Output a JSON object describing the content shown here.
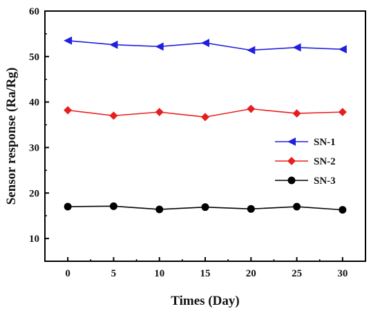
{
  "chart_data": {
    "type": "line",
    "title": "",
    "xlabel": "Times (Day)",
    "ylabel": "Sensor response (Ra/Rg)",
    "x": [
      0,
      5,
      10,
      15,
      20,
      25,
      30
    ],
    "xlim": [
      -2.5,
      32.5
    ],
    "ylim": [
      5,
      60
    ],
    "xticks": [
      "0",
      "5",
      "10",
      "15",
      "20",
      "25",
      "30"
    ],
    "yticks": [
      "10",
      "20",
      "30",
      "40",
      "50",
      "60"
    ],
    "grid": false,
    "legend_position": "right",
    "series": [
      {
        "name": "SN-1",
        "color": "#1f1fe0",
        "marker": "triangle-left",
        "values": [
          53.5,
          52.6,
          52.2,
          53.0,
          51.4,
          52.0,
          51.6
        ]
      },
      {
        "name": "SN-2",
        "color": "#e81d1d",
        "marker": "diamond",
        "values": [
          38.2,
          37.0,
          37.8,
          36.7,
          38.5,
          37.5,
          37.8
        ]
      },
      {
        "name": "SN-3",
        "color": "#000000",
        "marker": "circle",
        "values": [
          17.0,
          17.1,
          16.4,
          16.9,
          16.5,
          17.0,
          16.3
        ]
      }
    ]
  }
}
